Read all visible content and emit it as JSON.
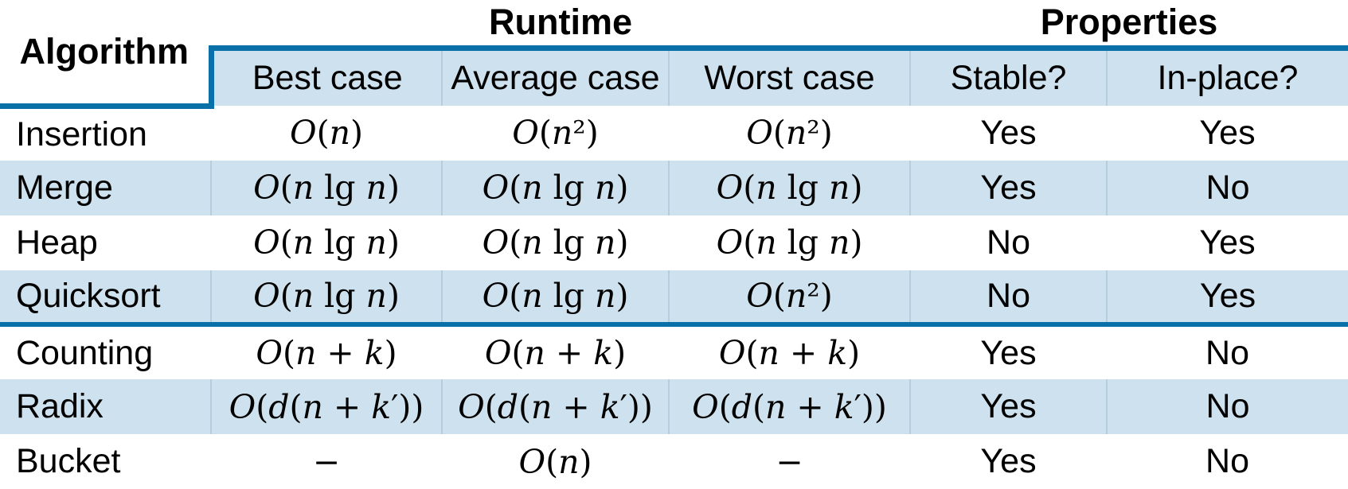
{
  "colors": {
    "accent": "#0A70A8",
    "row_fill": "#CDE1EE",
    "separator": "#B5CEDE",
    "text": "#000000",
    "page_bg": "#FFFFFF"
  },
  "chart_data": {
    "type": "table",
    "corner_header": "Algorithm",
    "column_groups": [
      {
        "label": "Runtime",
        "span": 3
      },
      {
        "label": "Properties",
        "span": 2
      }
    ],
    "columns": [
      "Best case",
      "Average case",
      "Worst case",
      "Stable?",
      "In-place?"
    ],
    "rows": [
      [
        "Insertion",
        "O(n)",
        "O(n²)",
        "O(n²)",
        "Yes",
        "Yes"
      ],
      [
        "Merge",
        "O(n lg n)",
        "O(n lg n)",
        "O(n lg n)",
        "Yes",
        "No"
      ],
      [
        "Heap",
        "O(n lg n)",
        "O(n lg n)",
        "O(n lg n)",
        "No",
        "Yes"
      ],
      [
        "Quicksort",
        "O(n lg n)",
        "O(n lg n)",
        "O(n²)",
        "No",
        "Yes"
      ],
      [
        "Counting",
        "O(n + k)",
        "O(n + k)",
        "O(n + k)",
        "Yes",
        "No"
      ],
      [
        "Radix",
        "O(d(n + k′))",
        "O(d(n + k′))",
        "O(d(n + k′))",
        "Yes",
        "No"
      ],
      [
        "Bucket",
        "−",
        "O(n)",
        "−",
        "Yes",
        "No"
      ]
    ],
    "section_divider_after_data_row": 4
  }
}
